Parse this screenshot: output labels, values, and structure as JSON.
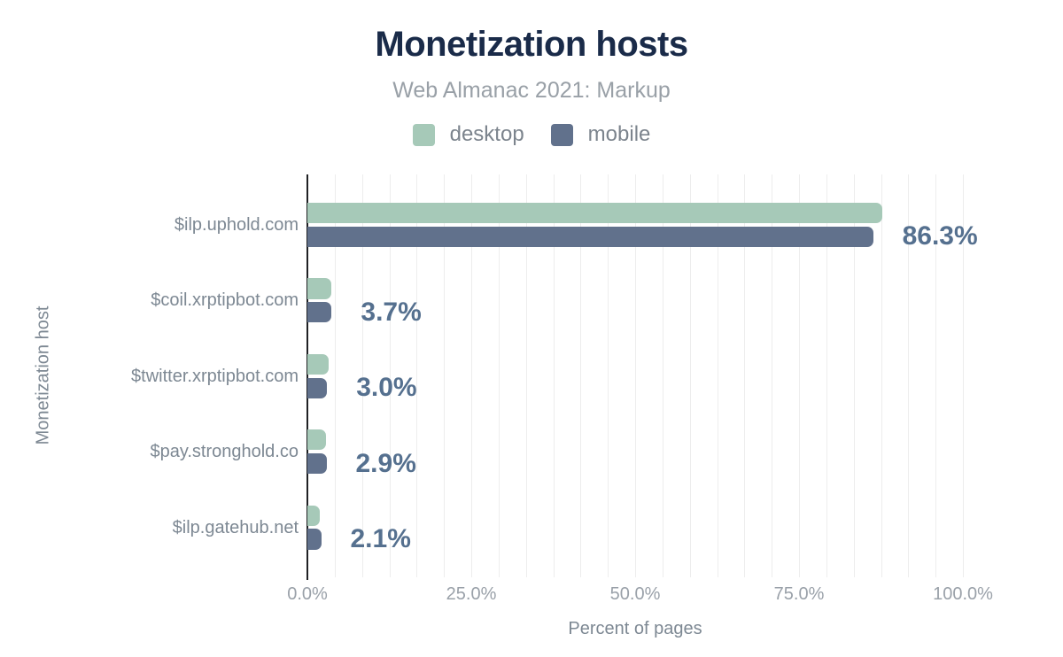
{
  "header": {
    "title": "Monetization hosts",
    "subtitle": "Web Almanac 2021: Markup"
  },
  "colors": {
    "desktop": "#a6c9b8",
    "mobile": "#61718c",
    "title": "#1a2b49",
    "value_label": "#55708f",
    "axis_line": "#202124",
    "gridline": "#ededed",
    "muted_text": "#7d8893"
  },
  "chart_data": {
    "type": "bar",
    "orientation": "horizontal",
    "title": "Monetization hosts",
    "subtitle": "Web Almanac 2021: Markup",
    "categories": [
      "$ilp.uphold.com",
      "$coil.xrptipbot.com",
      "$twitter.xrptipbot.com",
      "$pay.stronghold.co",
      "$ilp.gatehub.net"
    ],
    "series": [
      {
        "name": "desktop",
        "color": "#a6c9b8",
        "values": [
          87.7,
          3.6,
          3.3,
          2.8,
          1.9
        ]
      },
      {
        "name": "mobile",
        "color": "#61718c",
        "values": [
          86.3,
          3.7,
          3.0,
          2.9,
          2.1
        ]
      }
    ],
    "value_labels": [
      "86.3%",
      "3.7%",
      "3.0%",
      "2.9%",
      "2.1%"
    ],
    "value_label_series": "mobile",
    "xlabel": "Percent of pages",
    "ylabel": "Monetization host",
    "x_ticks": [
      "0.0%",
      "25.0%",
      "50.0%",
      "75.0%",
      "100.0%"
    ],
    "xlim": [
      0,
      100
    ],
    "grid": "vertical",
    "minor_gridlines_per_major": 5,
    "legend_position": "top"
  }
}
